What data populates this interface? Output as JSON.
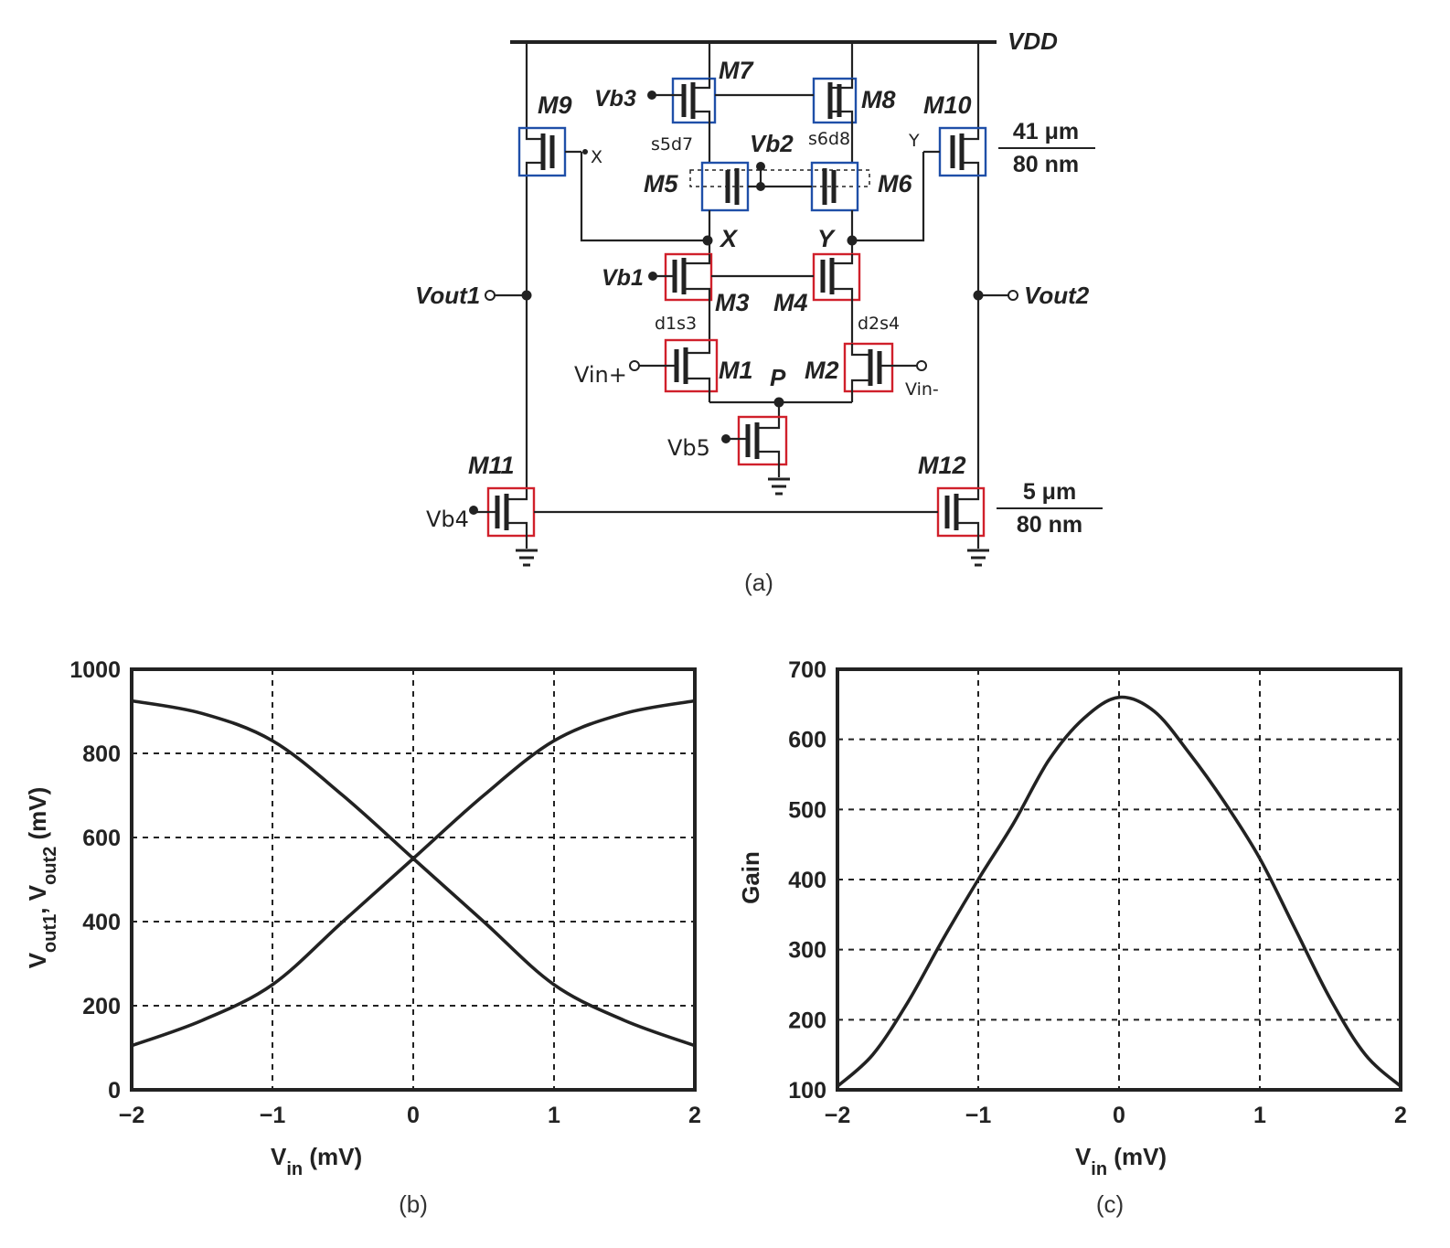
{
  "schematic": {
    "vdd": "VDD",
    "transistors": [
      "M1",
      "M2",
      "M3",
      "M4",
      "M5",
      "M6",
      "M7",
      "M8",
      "M9",
      "M10",
      "M11",
      "M12"
    ],
    "bias": {
      "vb1": "Vb1",
      "vb2": "Vb2",
      "vb3": "Vb3",
      "vb4": "Vb4",
      "vb5": "Vb5"
    },
    "inputs": {
      "vin_plus": "Vin+",
      "vin_minus": "Vin-"
    },
    "outputs": {
      "vout1": "Vout1",
      "vout2": "Vout2"
    },
    "nodes": {
      "x": "X",
      "y": "Y",
      "p": "P",
      "x_small": "X",
      "y_small": "Y"
    },
    "annotations": {
      "s5d7": "s5d7",
      "s6d8": "s6d8",
      "d1s3": "d1s3",
      "d2s4": "d2s4"
    },
    "sizes": {
      "pmos_w": "41 μm",
      "pmos_l": "80 nm",
      "nmos_w": "5 μm",
      "nmos_l": "80 nm"
    },
    "caption": "(a)",
    "box_colors": {
      "pmos": "#1f4fa8",
      "nmos": "#d0202b"
    }
  },
  "chart_data": [
    {
      "type": "line",
      "caption": "(b)",
      "xlabel": "Vin (mV)",
      "ylabel": "Vout1, Vout2 (mV)",
      "xlim": [
        -2,
        2
      ],
      "ylim": [
        0,
        1000
      ],
      "xticks": [
        "−2",
        "−1",
        "0",
        "1",
        "2"
      ],
      "yticks": [
        "0",
        "200",
        "400",
        "600",
        "800",
        "1000"
      ],
      "grid": true,
      "series": [
        {
          "x": [
            -2,
            -1.5,
            -1,
            -0.5,
            0,
            0.5,
            1,
            1.5,
            2
          ],
          "values": [
            925,
            895,
            830,
            700,
            550,
            400,
            250,
            165,
            105
          ]
        },
        {
          "x": [
            -2,
            -1.5,
            -1,
            -0.5,
            0,
            0.5,
            1,
            1.5,
            2
          ],
          "values": [
            105,
            165,
            250,
            400,
            550,
            700,
            830,
            895,
            925
          ]
        }
      ]
    },
    {
      "type": "line",
      "caption": "(c)",
      "xlabel": "Vin (mV)",
      "ylabel": "Gain",
      "xlim": [
        -2,
        2
      ],
      "ylim": [
        100,
        700
      ],
      "xticks": [
        "−2",
        "−1",
        "0",
        "1",
        "2"
      ],
      "yticks": [
        "100",
        "200",
        "300",
        "400",
        "500",
        "600",
        "700"
      ],
      "grid": true,
      "series": [
        {
          "x": [
            -2,
            -1.75,
            -1.5,
            -1.25,
            -1,
            -0.75,
            -0.5,
            -0.25,
            0,
            0.25,
            0.5,
            0.75,
            1,
            1.25,
            1.5,
            1.75,
            2
          ],
          "values": [
            105,
            150,
            225,
            315,
            400,
            480,
            570,
            630,
            660,
            640,
            580,
            510,
            430,
            330,
            230,
            150,
            105
          ]
        }
      ]
    }
  ]
}
